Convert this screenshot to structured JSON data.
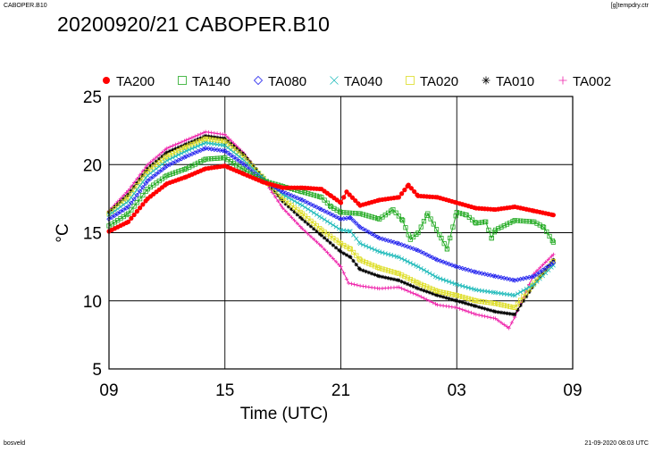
{
  "header": {
    "top_left": "CABOPER.B10",
    "top_right": "[g]tempdry.ctr",
    "bottom_left": "bosveld",
    "bottom_right": "21-09-2020 08:03 UTC"
  },
  "chart_data": {
    "type": "line",
    "title": "20200920/21 CABOPER.B10",
    "xlabel": "Time (UTC)",
    "ylabel": "°C",
    "x_range_hours": [
      0,
      24
    ],
    "x_ticks": [
      {
        "h": 0,
        "label": "09"
      },
      {
        "h": 6,
        "label": "15"
      },
      {
        "h": 12,
        "label": "21"
      },
      {
        "h": 18,
        "label": "03"
      },
      {
        "h": 24,
        "label": "09"
      }
    ],
    "ylim": [
      5,
      25
    ],
    "y_ticks": [
      5,
      10,
      15,
      20,
      25
    ],
    "grid": true,
    "legend_position": "top",
    "series": [
      {
        "name": "TA200",
        "color": "#ff0000",
        "marker": "dot",
        "points": [
          [
            0,
            15.1
          ],
          [
            1,
            15.8
          ],
          [
            2,
            17.5
          ],
          [
            3,
            18.6
          ],
          [
            4,
            19.1
          ],
          [
            5,
            19.7
          ],
          [
            6,
            19.9
          ],
          [
            7,
            19.3
          ],
          [
            8,
            18.7
          ],
          [
            9,
            18.3
          ],
          [
            10,
            18.3
          ],
          [
            11,
            18.2
          ],
          [
            11.5,
            17.7
          ],
          [
            12,
            17.2
          ],
          [
            12.3,
            18.0
          ],
          [
            13,
            17.0
          ],
          [
            14,
            17.4
          ],
          [
            15,
            17.6
          ],
          [
            15.5,
            18.5
          ],
          [
            16,
            17.7
          ],
          [
            17,
            17.6
          ],
          [
            18,
            17.2
          ],
          [
            19,
            16.8
          ],
          [
            20,
            16.7
          ],
          [
            21,
            16.9
          ],
          [
            22,
            16.6
          ],
          [
            23,
            16.3
          ]
        ]
      },
      {
        "name": "TA140",
        "color": "#22aa22",
        "marker": "square",
        "points": [
          [
            0,
            15.5
          ],
          [
            1,
            16.4
          ],
          [
            2,
            18.2
          ],
          [
            3,
            19.2
          ],
          [
            4,
            19.7
          ],
          [
            5,
            20.4
          ],
          [
            6,
            20.5
          ],
          [
            7,
            19.6
          ],
          [
            8,
            18.8
          ],
          [
            9,
            18.4
          ],
          [
            10,
            18.0
          ],
          [
            11,
            17.6
          ],
          [
            11.5,
            16.9
          ],
          [
            12,
            16.5
          ],
          [
            13,
            16.4
          ],
          [
            14,
            16.0
          ],
          [
            14.7,
            16.7
          ],
          [
            15.2,
            15.9
          ],
          [
            15.6,
            14.5
          ],
          [
            16,
            15.0
          ],
          [
            16.5,
            16.4
          ],
          [
            17.2,
            14.6
          ],
          [
            17.5,
            13.8
          ],
          [
            18,
            16.5
          ],
          [
            18.5,
            16.3
          ],
          [
            19,
            15.7
          ],
          [
            19.5,
            15.8
          ],
          [
            19.8,
            14.6
          ],
          [
            20,
            15.2
          ],
          [
            21,
            15.9
          ],
          [
            22,
            15.8
          ],
          [
            22.5,
            15.4
          ],
          [
            23,
            14.3
          ]
        ]
      },
      {
        "name": "TA080",
        "color": "#2222ee",
        "marker": "diamond",
        "points": [
          [
            0,
            16.0
          ],
          [
            1,
            16.9
          ],
          [
            2,
            18.8
          ],
          [
            3,
            19.9
          ],
          [
            4,
            20.6
          ],
          [
            5,
            21.2
          ],
          [
            6,
            21.0
          ],
          [
            7,
            20.0
          ],
          [
            8,
            18.8
          ],
          [
            9,
            18.0
          ],
          [
            10,
            17.4
          ],
          [
            11,
            16.7
          ],
          [
            12,
            16.0
          ],
          [
            12.5,
            16.1
          ],
          [
            13,
            15.4
          ],
          [
            14,
            14.6
          ],
          [
            15,
            14.2
          ],
          [
            16,
            13.7
          ],
          [
            17,
            13.0
          ],
          [
            18,
            12.5
          ],
          [
            19,
            12.1
          ],
          [
            20,
            11.8
          ],
          [
            21,
            11.5
          ],
          [
            22,
            11.8
          ],
          [
            23,
            12.8
          ]
        ]
      },
      {
        "name": "TA040",
        "color": "#22bbbb",
        "marker": "cross",
        "points": [
          [
            0,
            16.3
          ],
          [
            1,
            17.3
          ],
          [
            2,
            19.2
          ],
          [
            3,
            20.3
          ],
          [
            4,
            21.0
          ],
          [
            5,
            21.6
          ],
          [
            6,
            21.4
          ],
          [
            7,
            20.3
          ],
          [
            8,
            19.0
          ],
          [
            9,
            17.8
          ],
          [
            10,
            17.0
          ],
          [
            11,
            16.1
          ],
          [
            12,
            15.2
          ],
          [
            12.5,
            15.1
          ],
          [
            13,
            14.2
          ],
          [
            14,
            13.6
          ],
          [
            15,
            13.2
          ],
          [
            16,
            12.5
          ],
          [
            17,
            11.7
          ],
          [
            18,
            11.2
          ],
          [
            19,
            10.8
          ],
          [
            20,
            10.6
          ],
          [
            21,
            10.4
          ],
          [
            22,
            11.2
          ],
          [
            23,
            12.6
          ]
        ]
      },
      {
        "name": "TA020",
        "color": "#dddd22",
        "marker": "square",
        "points": [
          [
            0,
            16.4
          ],
          [
            1,
            17.6
          ],
          [
            2,
            19.5
          ],
          [
            3,
            20.6
          ],
          [
            4,
            21.3
          ],
          [
            5,
            21.9
          ],
          [
            6,
            21.7
          ],
          [
            7,
            20.5
          ],
          [
            8,
            19.0
          ],
          [
            9,
            17.5
          ],
          [
            10,
            16.4
          ],
          [
            11,
            15.2
          ],
          [
            12,
            14.2
          ],
          [
            12.5,
            13.8
          ],
          [
            13,
            13.0
          ],
          [
            14,
            12.4
          ],
          [
            15,
            12.0
          ],
          [
            16,
            11.3
          ],
          [
            17,
            10.7
          ],
          [
            18,
            10.4
          ],
          [
            19,
            10.0
          ],
          [
            20,
            9.8
          ],
          [
            21,
            9.5
          ],
          [
            22,
            11.3
          ],
          [
            23,
            12.9
          ]
        ]
      },
      {
        "name": "TA010",
        "color": "#000000",
        "marker": "asterisk",
        "points": [
          [
            0,
            16.5
          ],
          [
            1,
            17.8
          ],
          [
            2,
            19.7
          ],
          [
            3,
            20.9
          ],
          [
            4,
            21.5
          ],
          [
            5,
            22.1
          ],
          [
            6,
            21.9
          ],
          [
            7,
            20.7
          ],
          [
            8,
            19.0
          ],
          [
            9,
            17.3
          ],
          [
            10,
            16.0
          ],
          [
            11,
            14.8
          ],
          [
            12,
            13.6
          ],
          [
            12.5,
            13.2
          ],
          [
            13,
            12.3
          ],
          [
            14,
            11.8
          ],
          [
            15,
            11.5
          ],
          [
            16,
            10.9
          ],
          [
            17,
            10.4
          ],
          [
            18,
            10.0
          ],
          [
            19,
            9.6
          ],
          [
            20,
            9.2
          ],
          [
            21,
            9.0
          ],
          [
            22,
            11.2
          ],
          [
            23,
            13.0
          ]
        ]
      },
      {
        "name": "TA002",
        "color": "#ee22aa",
        "marker": "plus",
        "points": [
          [
            0,
            16.6
          ],
          [
            1,
            18.1
          ],
          [
            2,
            20.0
          ],
          [
            3,
            21.2
          ],
          [
            4,
            21.8
          ],
          [
            5,
            22.4
          ],
          [
            6,
            22.2
          ],
          [
            7,
            20.8
          ],
          [
            8,
            18.9
          ],
          [
            9,
            16.8
          ],
          [
            10,
            15.3
          ],
          [
            11,
            14.0
          ],
          [
            12,
            12.5
          ],
          [
            12.4,
            11.3
          ],
          [
            13,
            11.1
          ],
          [
            14,
            10.9
          ],
          [
            15,
            11.0
          ],
          [
            16,
            10.4
          ],
          [
            17,
            9.7
          ],
          [
            18,
            9.5
          ],
          [
            19,
            9.0
          ],
          [
            20,
            8.7
          ],
          [
            20.7,
            8.0
          ],
          [
            21,
            8.8
          ],
          [
            22,
            12.0
          ],
          [
            23,
            13.4
          ]
        ]
      }
    ]
  }
}
